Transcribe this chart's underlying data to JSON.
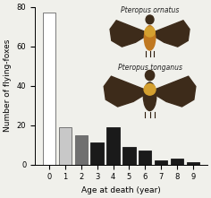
{
  "categories": [
    0,
    1,
    2,
    3,
    4,
    5,
    6,
    7,
    8,
    9
  ],
  "values": [
    77,
    19,
    15,
    11,
    19,
    9,
    7,
    2,
    3,
    1
  ],
  "bar_colors": [
    "#ffffff",
    "#c8c8c8",
    "#707070",
    "#1a1a1a",
    "#1a1a1a",
    "#1a1a1a",
    "#1a1a1a",
    "#1a1a1a",
    "#1a1a1a",
    "#1a1a1a"
  ],
  "bar_edgecolors": [
    "#666666",
    "#666666",
    "#666666",
    "#1a1a1a",
    "#1a1a1a",
    "#1a1a1a",
    "#1a1a1a",
    "#1a1a1a",
    "#1a1a1a",
    "#1a1a1a"
  ],
  "xlabel": "Age at death (year)",
  "ylabel": "Number of flying-foxes",
  "ylim": [
    0,
    80
  ],
  "yticks": [
    0,
    20,
    40,
    60,
    80
  ],
  "background_color": "#f0f0eb",
  "bat1_label": "Pteropus ornatus",
  "bat2_label": "Pteropus tonganus",
  "figsize": [
    2.36,
    2.21
  ],
  "dpi": 100,
  "bat_dark": "#3d2b1a",
  "bat_body1": "#c87820",
  "bat_body2": "#d4a030",
  "bat_wing": "#4a3520"
}
